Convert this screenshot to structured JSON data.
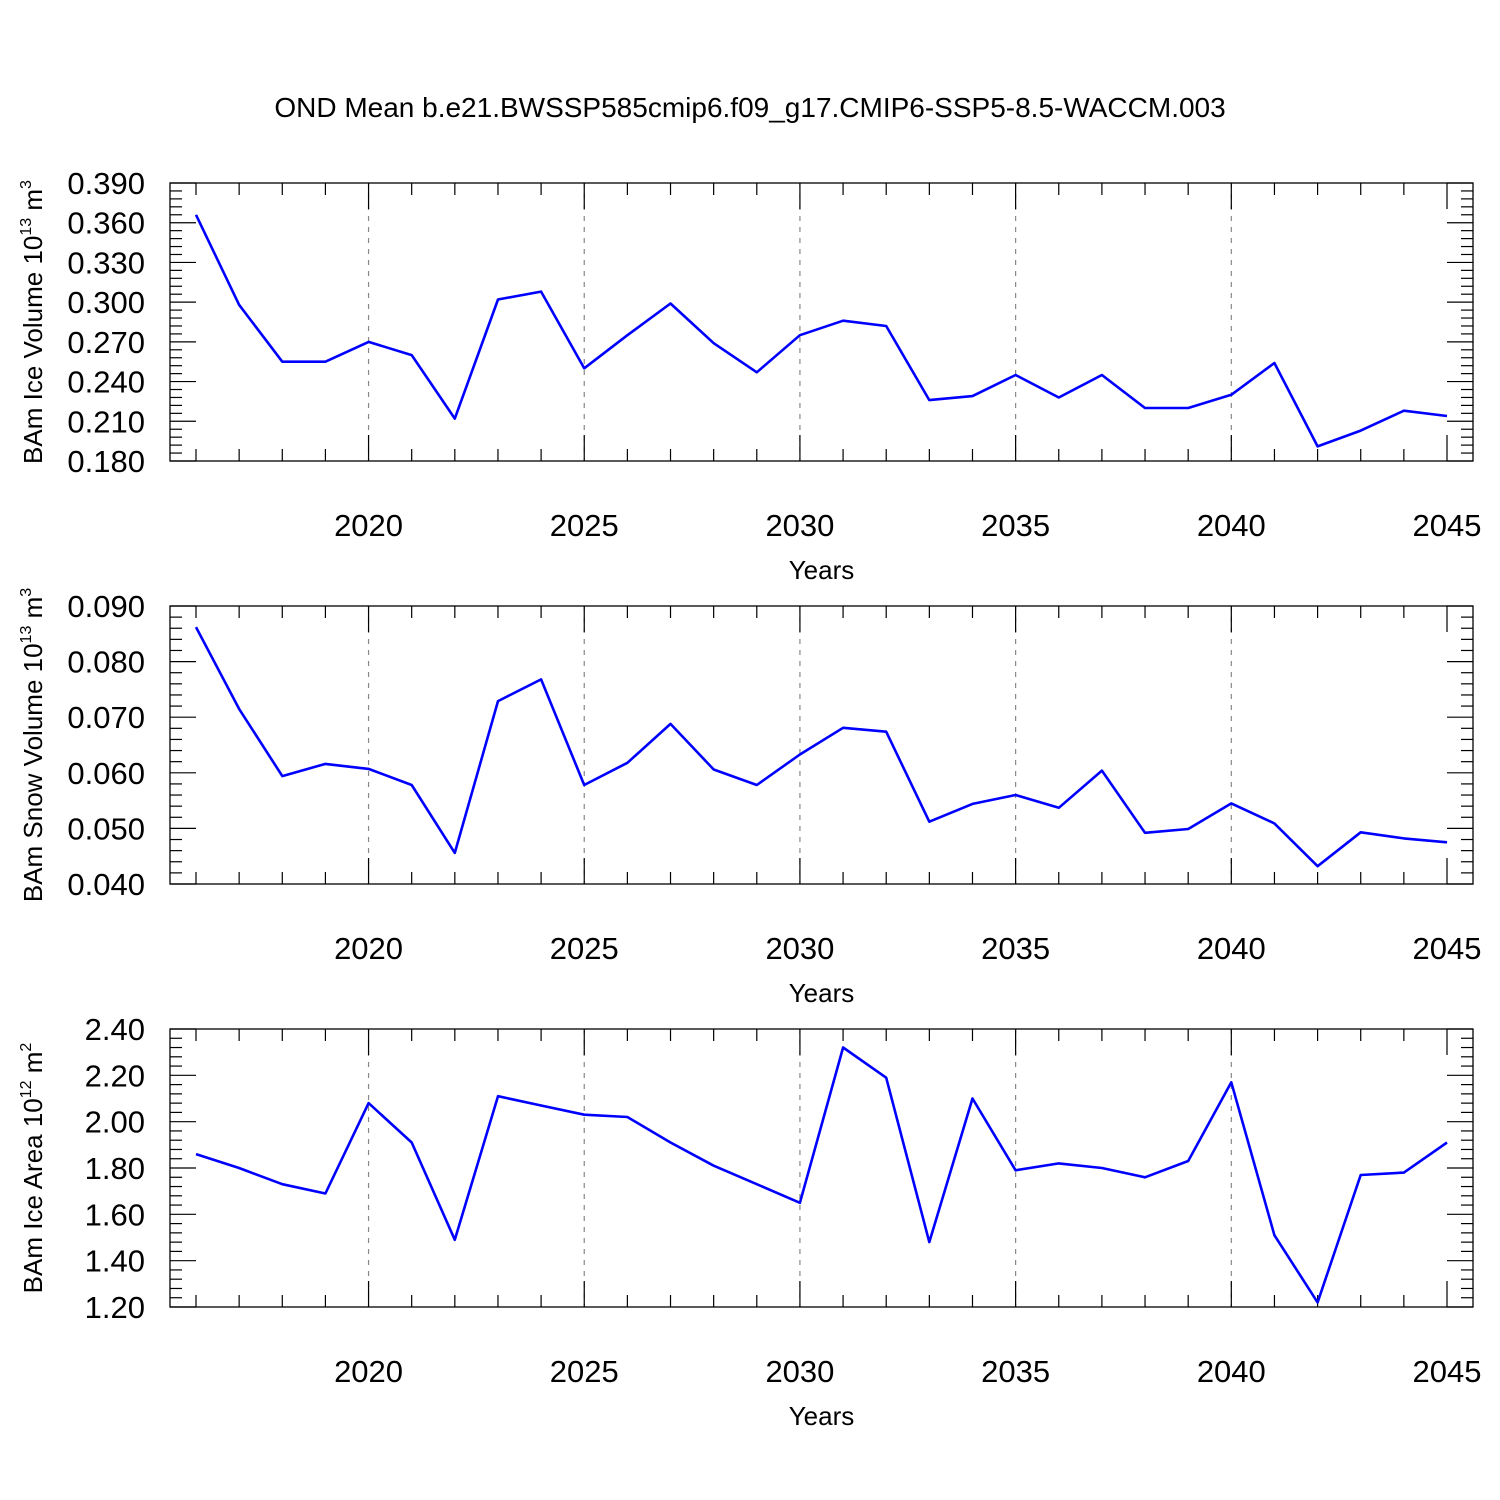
{
  "title": "OND Mean b.e21.BWSSP585cmip6.f09_g17.CMIP6-SSP5-8.5-WACCM.003",
  "chart_data": [
    {
      "type": "line",
      "ylabel": "BAm Ice Volume 10",
      "ylabel_exp": "13",
      "ylabel_unit": "m",
      "ylabel_unit_exp": "3",
      "xlabel": "Years",
      "xlim": [
        2016,
        2045
      ],
      "ylim": [
        0.18,
        0.39
      ],
      "yticks": [
        0.18,
        0.21,
        0.24,
        0.27,
        0.3,
        0.33,
        0.36,
        0.39
      ],
      "ytick_labels": [
        "0.180",
        "0.210",
        "0.240",
        "0.270",
        "0.300",
        "0.330",
        "0.360",
        "0.390"
      ],
      "xticks": [
        2020,
        2025,
        2030,
        2035,
        2040,
        2045
      ],
      "xtick_labels": [
        "2020",
        "2025",
        "2030",
        "2035",
        "2040",
        "2045"
      ],
      "grid": "vertical dashed",
      "line_color": "#0000ff",
      "x": [
        2016,
        2017,
        2018,
        2019,
        2020,
        2021,
        2022,
        2023,
        2024,
        2025,
        2026,
        2027,
        2028,
        2029,
        2030,
        2031,
        2032,
        2033,
        2034,
        2035,
        2036,
        2037,
        2038,
        2039,
        2040,
        2041,
        2042,
        2043,
        2044,
        2045
      ],
      "values": [
        0.366,
        0.298,
        0.255,
        0.255,
        0.27,
        0.26,
        0.212,
        0.302,
        0.308,
        0.25,
        0.275,
        0.299,
        0.269,
        0.247,
        0.275,
        0.286,
        0.282,
        0.226,
        0.229,
        0.245,
        0.228,
        0.245,
        0.22,
        0.22,
        0.23,
        0.254,
        0.191,
        0.203,
        0.218,
        0.214
      ]
    },
    {
      "type": "line",
      "ylabel": "BAm Snow Volume 10",
      "ylabel_exp": "13",
      "ylabel_unit": "m",
      "ylabel_unit_exp": "3",
      "xlabel": "Years",
      "xlim": [
        2016,
        2045
      ],
      "ylim": [
        0.04,
        0.09
      ],
      "yticks": [
        0.04,
        0.05,
        0.06,
        0.07,
        0.08,
        0.09
      ],
      "ytick_labels": [
        "0.040",
        "0.050",
        "0.060",
        "0.070",
        "0.080",
        "0.090"
      ],
      "xticks": [
        2020,
        2025,
        2030,
        2035,
        2040,
        2045
      ],
      "xtick_labels": [
        "2020",
        "2025",
        "2030",
        "2035",
        "2040",
        "2045"
      ],
      "grid": "vertical dashed",
      "line_color": "#0000ff",
      "x": [
        2016,
        2017,
        2018,
        2019,
        2020,
        2021,
        2022,
        2023,
        2024,
        2025,
        2026,
        2027,
        2028,
        2029,
        2030,
        2031,
        2032,
        2033,
        2034,
        2035,
        2036,
        2037,
        2038,
        2039,
        2040,
        2041,
        2042,
        2043,
        2044,
        2045
      ],
      "values": [
        0.0862,
        0.0715,
        0.0594,
        0.0616,
        0.0607,
        0.0578,
        0.0456,
        0.0729,
        0.0768,
        0.0578,
        0.0618,
        0.0688,
        0.0606,
        0.0578,
        0.0633,
        0.0681,
        0.0674,
        0.0512,
        0.0544,
        0.056,
        0.0537,
        0.0604,
        0.0492,
        0.0499,
        0.0545,
        0.0509,
        0.0432,
        0.0493,
        0.0482,
        0.0475
      ]
    },
    {
      "type": "line",
      "ylabel": "BAm Ice Area 10",
      "ylabel_exp": "12",
      "ylabel_unit": "m",
      "ylabel_unit_exp": "2",
      "xlabel": "Years",
      "xlim": [
        2016,
        2045
      ],
      "ylim": [
        1.2,
        2.4
      ],
      "yticks": [
        1.2,
        1.4,
        1.6,
        1.8,
        2.0,
        2.2,
        2.4
      ],
      "ytick_labels": [
        "1.20",
        "1.40",
        "1.60",
        "1.80",
        "2.00",
        "2.20",
        "2.40"
      ],
      "xticks": [
        2020,
        2025,
        2030,
        2035,
        2040,
        2045
      ],
      "xtick_labels": [
        "2020",
        "2025",
        "2030",
        "2035",
        "2040",
        "2045"
      ],
      "grid": "vertical dashed",
      "line_color": "#0000ff",
      "x": [
        2016,
        2017,
        2018,
        2019,
        2020,
        2021,
        2022,
        2023,
        2024,
        2025,
        2026,
        2027,
        2028,
        2029,
        2030,
        2031,
        2032,
        2033,
        2034,
        2035,
        2036,
        2037,
        2038,
        2039,
        2040,
        2041,
        2042,
        2043,
        2044,
        2045
      ],
      "values": [
        1.86,
        1.8,
        1.73,
        1.69,
        2.08,
        1.91,
        1.49,
        2.11,
        2.07,
        2.03,
        2.02,
        1.91,
        1.81,
        1.73,
        1.65,
        2.32,
        2.19,
        1.48,
        2.1,
        1.79,
        1.82,
        1.8,
        1.76,
        1.83,
        2.17,
        1.51,
        1.22,
        1.77,
        1.78,
        1.91
      ]
    }
  ]
}
